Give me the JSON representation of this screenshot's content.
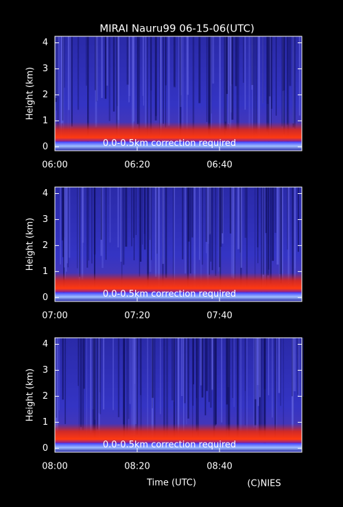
{
  "title": "MIRAI Nauru99 06-15-06(UTC)",
  "credit": "(C)NIES",
  "chart_data": [
    {
      "type": "heatmap",
      "ylabel": "Height (km)",
      "annotation": "0.0-0.5km correction required",
      "ylim": [
        -0.15,
        4.25
      ],
      "yticks": [
        0,
        1,
        2,
        3,
        4
      ],
      "xlim": [
        360,
        420
      ],
      "xticks": [
        {
          "value": 360,
          "label": "06:00"
        },
        {
          "value": 380,
          "label": "06:20"
        },
        {
          "value": 400,
          "label": "06:40"
        }
      ]
    },
    {
      "type": "heatmap",
      "ylabel": "Height (km)",
      "annotation": "0.0-0.5km correction required",
      "ylim": [
        -0.15,
        4.25
      ],
      "yticks": [
        0,
        1,
        2,
        3,
        4
      ],
      "xlim": [
        420,
        480
      ],
      "xticks": [
        {
          "value": 420,
          "label": "07:00"
        },
        {
          "value": 440,
          "label": "07:20"
        },
        {
          "value": 460,
          "label": "07:40"
        }
      ]
    },
    {
      "type": "heatmap",
      "ylabel": "Height (km)",
      "annotation": "0.0-0.5km correction required",
      "xlabel": "Time (UTC)",
      "ylim": [
        -0.15,
        4.25
      ],
      "yticks": [
        0,
        1,
        2,
        3,
        4
      ],
      "xlim": [
        480,
        540
      ],
      "xticks": [
        {
          "value": 480,
          "label": "08:00"
        },
        {
          "value": 500,
          "label": "08:20"
        },
        {
          "value": 520,
          "label": "08:40"
        }
      ]
    }
  ]
}
